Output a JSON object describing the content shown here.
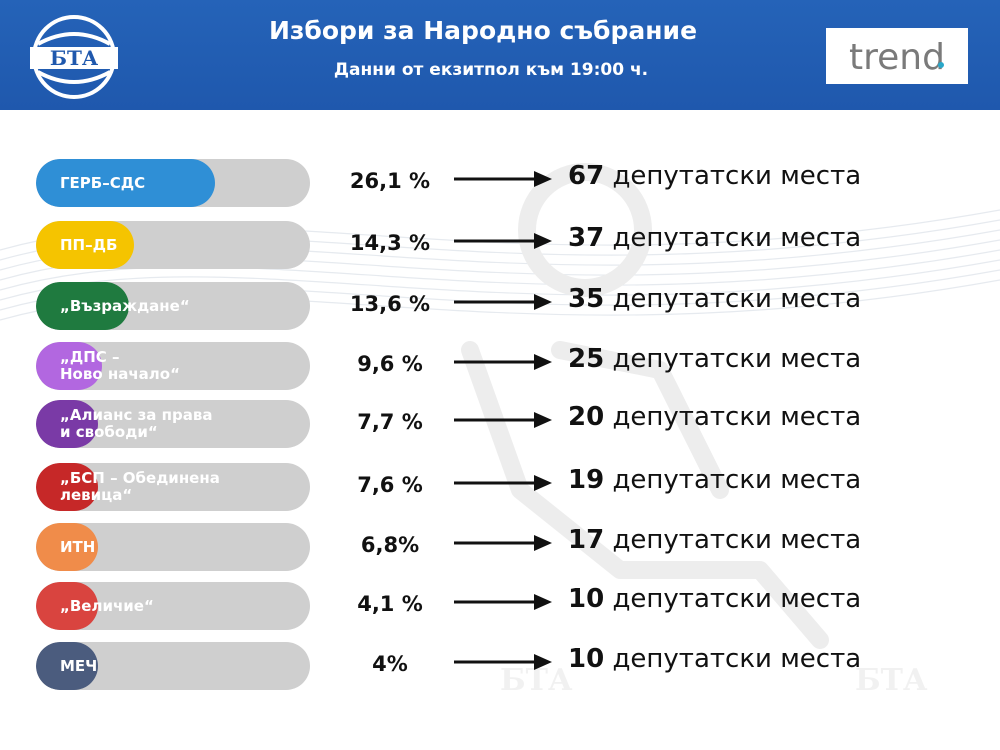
{
  "header": {
    "title": "Избори за Народно събрание",
    "subtitle": "Данни от екзитпол към 19:00 ч.",
    "logo_left": "БТА",
    "logo_right": "trend",
    "background_color": "#1f58ad"
  },
  "watermark": "БТА",
  "chart_data": {
    "type": "bar",
    "categories": [
      "ГЕРБ–СДС",
      "ПП–ДБ",
      "„Възраждане“",
      "„ДПС –\nНово начало“",
      "„Алианс за права\nи свободи“",
      "„БСП – Обединена\nлевица“",
      "ИТН",
      "„Величие“",
      "МЕЧ"
    ],
    "values": [
      26.1,
      14.3,
      13.6,
      9.6,
      7.7,
      7.6,
      6.8,
      4.1,
      4
    ],
    "value_labels": [
      "26,1 %",
      "14,3 %",
      "13,6 %",
      "9,6 %",
      "7,7 %",
      "7,6 %",
      "6,8%",
      "4,1 %",
      "4%"
    ],
    "seats": [
      67,
      37,
      35,
      25,
      20,
      19,
      17,
      10,
      10
    ],
    "seats_label": "депутатски места",
    "colors": [
      "#2f8fd6",
      "#f5c400",
      "#1f7a3f",
      "#b267e0",
      "#7a3aa6",
      "#c62828",
      "#f08c4a",
      "#d9443f",
      "#4b5c7e"
    ],
    "track_color": "#cfcfcf"
  }
}
